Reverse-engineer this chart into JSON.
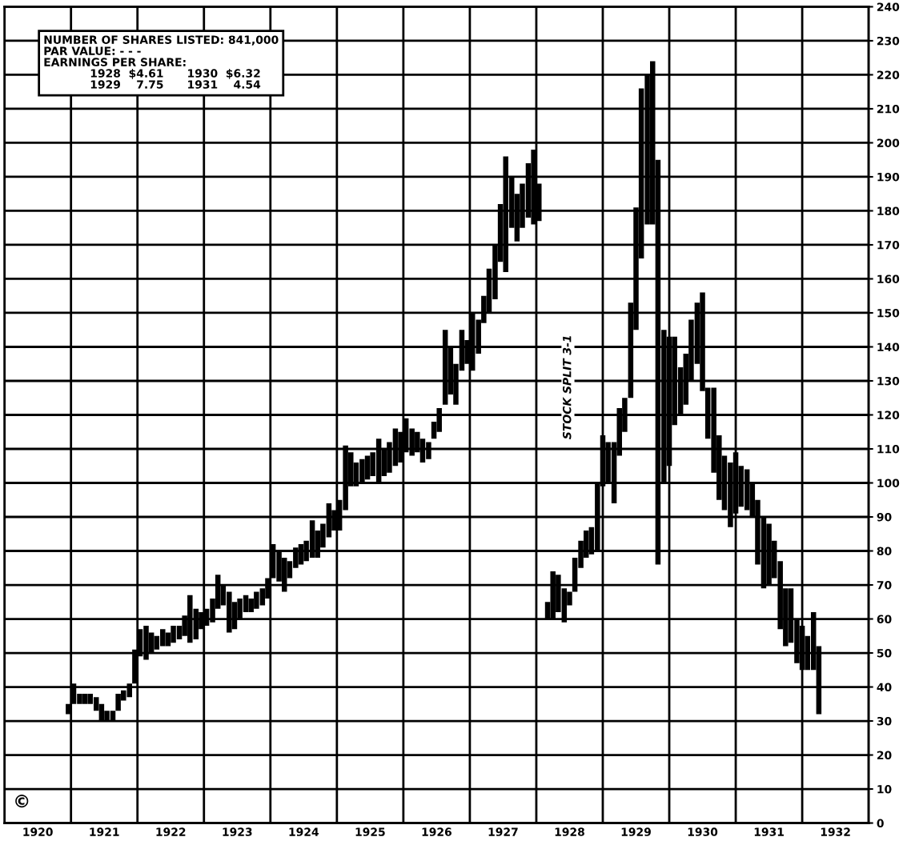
{
  "chart_data": {
    "type": "bar",
    "x": [
      1920.96,
      1921.04,
      1921.13,
      1921.21,
      1921.29,
      1921.38,
      1921.46,
      1921.54,
      1921.63,
      1921.71,
      1921.79,
      1921.88,
      1921.96,
      1922.04,
      1922.13,
      1922.21,
      1922.29,
      1922.38,
      1922.46,
      1922.54,
      1922.63,
      1922.71,
      1922.79,
      1922.88,
      1922.96,
      1923.04,
      1923.13,
      1923.21,
      1923.29,
      1923.38,
      1923.46,
      1923.54,
      1923.63,
      1923.71,
      1923.79,
      1923.88,
      1923.96,
      1924.04,
      1924.13,
      1924.21,
      1924.29,
      1924.38,
      1924.46,
      1924.54,
      1924.63,
      1924.71,
      1924.79,
      1924.88,
      1924.96,
      1925.04,
      1925.13,
      1925.21,
      1925.29,
      1925.38,
      1925.46,
      1925.54,
      1925.63,
      1925.71,
      1925.79,
      1925.88,
      1925.96,
      1926.04,
      1926.13,
      1926.21,
      1926.29,
      1926.38,
      1926.46,
      1926.54,
      1926.63,
      1926.71,
      1926.79,
      1926.88,
      1926.96,
      1927.04,
      1927.13,
      1927.21,
      1927.29,
      1927.38,
      1927.46,
      1927.54,
      1927.63,
      1927.71,
      1927.79,
      1927.88,
      1927.96,
      1928.04,
      1928.17,
      1928.25,
      1928.33,
      1928.42,
      1928.5,
      1928.58,
      1928.67,
      1928.75,
      1928.83,
      1928.92,
      1929.0,
      1929.08,
      1929.17,
      1929.25,
      1929.33,
      1929.42,
      1929.5,
      1929.58,
      1929.67,
      1929.75,
      1929.83,
      1929.92,
      1930.0,
      1930.08,
      1930.17,
      1930.25,
      1930.33,
      1930.42,
      1930.5,
      1930.58,
      1930.67,
      1930.75,
      1930.83,
      1930.92,
      1931.0,
      1931.08,
      1931.17,
      1931.25,
      1931.33,
      1931.42,
      1931.5,
      1931.58,
      1931.67,
      1931.75,
      1931.83,
      1931.92,
      1932.0,
      1932.08,
      1932.17,
      1932.25
    ],
    "base": [
      32,
      35,
      35,
      35,
      35,
      33,
      30,
      30,
      30,
      33,
      36,
      37,
      41,
      49,
      48,
      50,
      51,
      52,
      52,
      53,
      54,
      55,
      53,
      54,
      57,
      58,
      59,
      63,
      64,
      56,
      57,
      60,
      62,
      62,
      63,
      64,
      66,
      72,
      71,
      68,
      72,
      75,
      76,
      77,
      78,
      78,
      81,
      84,
      86,
      86,
      92,
      99,
      99,
      100,
      101,
      102,
      100,
      102,
      103,
      105,
      106,
      109,
      108,
      109,
      106,
      107,
      113,
      115,
      123,
      126,
      123,
      133,
      135,
      133,
      138,
      147,
      150,
      154,
      165,
      162,
      175,
      171,
      175,
      178,
      176,
      177,
      60,
      60,
      62,
      59,
      64,
      68,
      75,
      78,
      79,
      80,
      99,
      100,
      94,
      108,
      115,
      125,
      145,
      166,
      176,
      176,
      76,
      100,
      105,
      117,
      120,
      123,
      130,
      135,
      127,
      113,
      103,
      95,
      92,
      87,
      91,
      93,
      92,
      90,
      76,
      69,
      70,
      72,
      57,
      52,
      53,
      47,
      45,
      45,
      45,
      32
    ],
    "values": [
      3,
      6,
      3,
      3,
      3,
      4,
      5,
      3,
      3,
      5,
      3,
      4,
      10,
      8,
      10,
      6,
      4,
      5,
      4,
      5,
      4,
      6,
      14,
      9,
      5,
      5,
      7,
      10,
      6,
      12,
      8,
      6,
      5,
      4,
      5,
      5,
      6,
      10,
      9,
      10,
      5,
      6,
      6,
      6,
      11,
      8,
      7,
      10,
      6,
      9,
      19,
      10,
      7,
      7,
      7,
      7,
      13,
      8,
      9,
      11,
      9,
      10,
      8,
      6,
      7,
      5,
      5,
      7,
      22,
      14,
      12,
      12,
      7,
      17,
      10,
      8,
      13,
      16,
      17,
      34,
      15,
      14,
      13,
      16,
      22,
      11,
      5,
      14,
      11,
      10,
      4,
      10,
      8,
      8,
      8,
      20,
      15,
      12,
      18,
      14,
      10,
      28,
      36,
      50,
      44,
      48,
      119,
      45,
      38,
      26,
      14,
      15,
      18,
      18,
      29,
      15,
      25,
      19,
      16,
      19,
      18,
      12,
      12,
      10,
      19,
      21,
      18,
      11,
      20,
      17,
      16,
      13,
      13,
      10,
      17,
      20
    ],
    "color": "#000000",
    "xlim": [
      1920,
      1933
    ],
    "xticks": [
      {
        "value": 1920,
        "label": null
      },
      {
        "value": 1920.5,
        "label": "1920"
      },
      {
        "value": 1921,
        "label": null
      },
      {
        "value": 1921.5,
        "label": "1921"
      },
      {
        "value": 1922,
        "label": null
      },
      {
        "value": 1922.5,
        "label": "1922"
      },
      {
        "value": 1923,
        "label": null
      },
      {
        "value": 1923.5,
        "label": "1923"
      },
      {
        "value": 1924,
        "label": null
      },
      {
        "value": 1924.5,
        "label": "1924"
      },
      {
        "value": 1925,
        "label": null
      },
      {
        "value": 1925.5,
        "label": "1925"
      },
      {
        "value": 1926,
        "label": null
      },
      {
        "value": 1926.5,
        "label": "1926"
      },
      {
        "value": 1927,
        "label": null
      },
      {
        "value": 1927.5,
        "label": "1927"
      },
      {
        "value": 1928,
        "label": null
      },
      {
        "value": 1928.5,
        "label": "1928"
      },
      {
        "value": 1929,
        "label": null
      },
      {
        "value": 1929.5,
        "label": "1929"
      },
      {
        "value": 1930,
        "label": null
      },
      {
        "value": 1930.5,
        "label": "1930"
      },
      {
        "value": 1931,
        "label": null
      },
      {
        "value": 1931.5,
        "label": "1931"
      },
      {
        "value": 1932,
        "label": null
      },
      {
        "value": 1932.5,
        "label": "1932"
      },
      {
        "value": 1933,
        "label": null
      }
    ],
    "ylim": [
      0,
      240
    ],
    "yticks": [
      0,
      10,
      20,
      30,
      40,
      50,
      60,
      70,
      80,
      90,
      100,
      110,
      120,
      130,
      140,
      150,
      160,
      170,
      180,
      190,
      200,
      210,
      220,
      230,
      240
    ],
    "grid": true,
    "annotations": [
      "NUMBER OF SHARES LISTED: 841,000\nPAR VALUE: - - -\nEARNINGS PER SHARE:\n            1928  $4.61      1930  $6.32\n            1929    7.75      1931    4.54",
      "©",
      "STOCK SPLIT 3-1"
    ]
  }
}
